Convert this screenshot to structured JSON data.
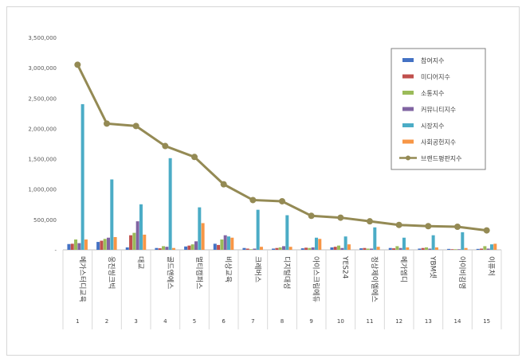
{
  "chart_data": {
    "type": "bar",
    "title": "",
    "xlabel": "",
    "ylabel": "",
    "ylim": [
      0,
      3500000
    ],
    "yticks": [
      0,
      500000,
      1000000,
      1500000,
      2000000,
      2500000,
      3000000,
      3500000
    ],
    "ytick_labels": [
      "-",
      "500,000",
      "1,000,000",
      "1,500,000",
      "2,000,000",
      "2,500,000",
      "3,000,000",
      "3,500,000"
    ],
    "grid": false,
    "legend_position": "top-right",
    "categories": [
      "메가스터디교육",
      "웅진씽크빅",
      "대교",
      "골드앤에스",
      "멀티캠퍼스",
      "비상교육",
      "크레버스",
      "디지털대성",
      "아이스크림에듀",
      "YES24",
      "정상제이엘에스",
      "메가엠디",
      "YBM넷",
      "아이비김영",
      "이퓨처"
    ],
    "category_numbers": [
      "1",
      "2",
      "3",
      "4",
      "5",
      "6",
      "7",
      "8",
      "9",
      "10",
      "11",
      "12",
      "13",
      "14",
      "15"
    ],
    "series": [
      {
        "name": "참여지수",
        "color": "#4472c4",
        "values": [
          95000,
          130000,
          40000,
          30000,
          55000,
          100000,
          30000,
          20000,
          25000,
          40000,
          25000,
          30000,
          20000,
          15000,
          15000
        ]
      },
      {
        "name": "미디어지수",
        "color": "#c0504d",
        "values": [
          100000,
          150000,
          240000,
          25000,
          70000,
          80000,
          20000,
          30000,
          35000,
          50000,
          30000,
          25000,
          30000,
          10000,
          20000
        ]
      },
      {
        "name": "소통지수",
        "color": "#9bbb59",
        "values": [
          170000,
          180000,
          280000,
          60000,
          90000,
          170000,
          10000,
          40000,
          30000,
          70000,
          20000,
          60000,
          40000,
          10000,
          60000
        ]
      },
      {
        "name": "커뮤니티지수",
        "color": "#8064a2",
        "values": [
          110000,
          200000,
          470000,
          50000,
          140000,
          240000,
          20000,
          60000,
          40000,
          30000,
          20000,
          30000,
          20000,
          10000,
          20000
        ]
      },
      {
        "name": "시장지수",
        "color": "#4bacc6",
        "values": [
          2400000,
          1160000,
          750000,
          1510000,
          700000,
          220000,
          660000,
          570000,
          200000,
          220000,
          370000,
          200000,
          240000,
          290000,
          90000
        ]
      },
      {
        "name": "사회공헌지수",
        "color": "#f79646",
        "values": [
          170000,
          210000,
          250000,
          30000,
          440000,
          200000,
          50000,
          50000,
          180000,
          90000,
          50000,
          40000,
          40000,
          30000,
          100000
        ]
      }
    ],
    "line_series": {
      "name": "브랜드평판지수",
      "color": "#948a54",
      "values": [
        3050000,
        2080000,
        2040000,
        1710000,
        1530000,
        1080000,
        820000,
        800000,
        560000,
        530000,
        470000,
        410000,
        390000,
        380000,
        320000
      ]
    }
  }
}
